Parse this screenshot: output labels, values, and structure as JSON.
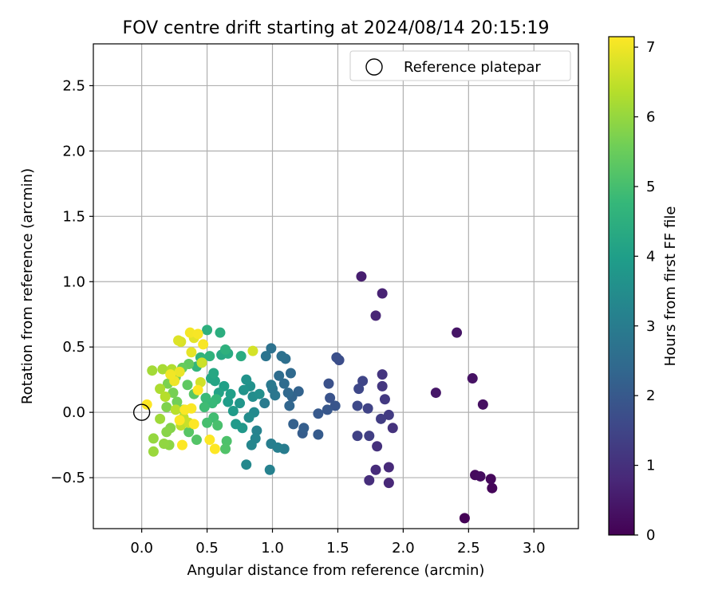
{
  "chart_data": {
    "type": "scatter",
    "title": "FOV centre drift starting at 2024/08/14 20:15:19",
    "xlabel": "Angular distance from reference (arcmin)",
    "ylabel": "Rotation from reference (arcmin)",
    "xlim": [
      -0.37,
      3.34
    ],
    "ylim": [
      -0.89,
      2.82
    ],
    "xticks": [
      0.0,
      0.5,
      1.0,
      1.5,
      2.0,
      2.5,
      3.0
    ],
    "xtick_labels": [
      "0.0",
      "0.5",
      "1.0",
      "1.5",
      "2.0",
      "2.5",
      "3.0"
    ],
    "yticks": [
      -0.5,
      0.0,
      0.5,
      1.0,
      1.5,
      2.0,
      2.5
    ],
    "ytick_labels": [
      "−0.5",
      "0.0",
      "0.5",
      "1.0",
      "1.5",
      "2.0",
      "2.5"
    ],
    "grid": true,
    "legend": {
      "position": "top-right",
      "entries": [
        "Reference platepar"
      ]
    },
    "reference_point": {
      "x": 0.0,
      "y": 0.0,
      "marker": "open-circle"
    },
    "colorbar": {
      "label": "Hours from first FF file",
      "min": 0,
      "max": 7.15,
      "ticks": [
        0,
        1,
        2,
        3,
        4,
        5,
        6,
        7
      ],
      "tick_labels": [
        "0",
        "1",
        "2",
        "3",
        "4",
        "5",
        "6",
        "7"
      ],
      "colormap": "viridis",
      "colors": [
        "#440154",
        "#482878",
        "#3e4989",
        "#31688e",
        "#26828e",
        "#1f9e89",
        "#35b779",
        "#6ece58",
        "#b5de2b",
        "#fde725"
      ]
    },
    "points": [
      {
        "x": 2.47,
        "y": -0.81,
        "c": 0.05
      },
      {
        "x": 2.68,
        "y": -0.58,
        "c": 0.1
      },
      {
        "x": 2.67,
        "y": -0.51,
        "c": 0.15
      },
      {
        "x": 2.55,
        "y": -0.48,
        "c": 0.2
      },
      {
        "x": 2.59,
        "y": -0.49,
        "c": 0.25
      },
      {
        "x": 2.61,
        "y": 0.06,
        "c": 0.3
      },
      {
        "x": 2.53,
        "y": 0.26,
        "c": 0.35
      },
      {
        "x": 2.41,
        "y": 0.61,
        "c": 0.4
      },
      {
        "x": 2.25,
        "y": 0.15,
        "c": 0.45
      },
      {
        "x": 1.68,
        "y": 1.04,
        "c": 0.6
      },
      {
        "x": 1.84,
        "y": 0.91,
        "c": 0.7
      },
      {
        "x": 1.79,
        "y": 0.74,
        "c": 0.75
      },
      {
        "x": 1.89,
        "y": -0.54,
        "c": 0.8
      },
      {
        "x": 1.89,
        "y": -0.42,
        "c": 0.85
      },
      {
        "x": 1.79,
        "y": -0.44,
        "c": 0.9
      },
      {
        "x": 1.74,
        "y": -0.52,
        "c": 0.95
      },
      {
        "x": 1.8,
        "y": -0.26,
        "c": 1.0
      },
      {
        "x": 1.92,
        "y": -0.12,
        "c": 1.05
      },
      {
        "x": 1.84,
        "y": 0.29,
        "c": 1.1
      },
      {
        "x": 1.84,
        "y": 0.2,
        "c": 1.15
      },
      {
        "x": 1.86,
        "y": 0.1,
        "c": 1.2
      },
      {
        "x": 1.89,
        "y": -0.02,
        "c": 1.25
      },
      {
        "x": 1.83,
        "y": -0.05,
        "c": 1.3
      },
      {
        "x": 1.74,
        "y": -0.18,
        "c": 1.35
      },
      {
        "x": 1.65,
        "y": -0.18,
        "c": 1.4
      },
      {
        "x": 1.73,
        "y": 0.03,
        "c": 1.45
      },
      {
        "x": 1.69,
        "y": 0.24,
        "c": 1.5
      },
      {
        "x": 1.66,
        "y": 0.18,
        "c": 1.55
      },
      {
        "x": 1.65,
        "y": 0.05,
        "c": 1.6
      },
      {
        "x": 1.51,
        "y": 0.4,
        "c": 1.7
      },
      {
        "x": 1.49,
        "y": 0.42,
        "c": 1.75
      },
      {
        "x": 1.43,
        "y": 0.22,
        "c": 1.8
      },
      {
        "x": 1.44,
        "y": 0.11,
        "c": 1.85
      },
      {
        "x": 1.48,
        "y": 0.05,
        "c": 1.9
      },
      {
        "x": 1.42,
        "y": 0.02,
        "c": 1.95
      },
      {
        "x": 1.35,
        "y": -0.01,
        "c": 2.0
      },
      {
        "x": 1.35,
        "y": -0.17,
        "c": 2.05
      },
      {
        "x": 1.23,
        "y": -0.16,
        "c": 2.1
      },
      {
        "x": 1.24,
        "y": -0.12,
        "c": 2.15
      },
      {
        "x": 1.16,
        "y": -0.09,
        "c": 2.2
      },
      {
        "x": 1.2,
        "y": 0.16,
        "c": 2.25
      },
      {
        "x": 1.15,
        "y": 0.12,
        "c": 2.3
      },
      {
        "x": 1.13,
        "y": 0.05,
        "c": 2.35
      },
      {
        "x": 1.12,
        "y": 0.15,
        "c": 2.4
      },
      {
        "x": 1.14,
        "y": 0.3,
        "c": 2.45
      },
      {
        "x": 1.09,
        "y": 0.22,
        "c": 2.5
      },
      {
        "x": 1.05,
        "y": 0.28,
        "c": 2.55
      },
      {
        "x": 1.1,
        "y": 0.41,
        "c": 2.6
      },
      {
        "x": 1.07,
        "y": 0.43,
        "c": 2.65
      },
      {
        "x": 0.99,
        "y": 0.49,
        "c": 2.7
      },
      {
        "x": 0.95,
        "y": 0.43,
        "c": 2.75
      },
      {
        "x": 1.0,
        "y": 0.18,
        "c": 2.8
      },
      {
        "x": 1.02,
        "y": 0.13,
        "c": 2.85
      },
      {
        "x": 0.99,
        "y": 0.21,
        "c": 2.9
      },
      {
        "x": 0.94,
        "y": 0.07,
        "c": 2.95
      },
      {
        "x": 1.09,
        "y": -0.28,
        "c": 3.0
      },
      {
        "x": 0.99,
        "y": -0.24,
        "c": 3.05
      },
      {
        "x": 1.04,
        "y": -0.27,
        "c": 3.1
      },
      {
        "x": 0.98,
        "y": -0.44,
        "c": 3.15
      },
      {
        "x": 0.88,
        "y": -0.14,
        "c": 3.2
      },
      {
        "x": 0.87,
        "y": -0.2,
        "c": 3.25
      },
      {
        "x": 0.84,
        "y": -0.25,
        "c": 3.3
      },
      {
        "x": 0.8,
        "y": -0.4,
        "c": 3.35
      },
      {
        "x": 0.86,
        "y": 0.0,
        "c": 3.4
      },
      {
        "x": 0.82,
        "y": -0.04,
        "c": 3.45
      },
      {
        "x": 0.85,
        "y": 0.12,
        "c": 3.5
      },
      {
        "x": 0.9,
        "y": 0.14,
        "c": 3.55
      },
      {
        "x": 0.83,
        "y": 0.2,
        "c": 3.6
      },
      {
        "x": 0.8,
        "y": 0.25,
        "c": 3.65
      },
      {
        "x": 0.78,
        "y": 0.17,
        "c": 3.7
      },
      {
        "x": 0.75,
        "y": 0.07,
        "c": 3.75
      },
      {
        "x": 0.77,
        "y": -0.12,
        "c": 3.8
      },
      {
        "x": 0.72,
        "y": -0.09,
        "c": 3.85
      },
      {
        "x": 0.7,
        "y": 0.01,
        "c": 3.9
      },
      {
        "x": 0.66,
        "y": 0.08,
        "c": 3.95
      },
      {
        "x": 0.68,
        "y": 0.14,
        "c": 4.0
      },
      {
        "x": 0.63,
        "y": 0.2,
        "c": 4.05
      },
      {
        "x": 0.59,
        "y": 0.15,
        "c": 4.1
      },
      {
        "x": 0.56,
        "y": 0.24,
        "c": 4.15
      },
      {
        "x": 0.53,
        "y": 0.26,
        "c": 4.2
      },
      {
        "x": 0.55,
        "y": 0.3,
        "c": 4.25
      },
      {
        "x": 0.61,
        "y": 0.44,
        "c": 4.3
      },
      {
        "x": 0.66,
        "y": 0.45,
        "c": 4.35
      },
      {
        "x": 0.76,
        "y": 0.43,
        "c": 4.4
      },
      {
        "x": 0.6,
        "y": 0.61,
        "c": 4.45
      },
      {
        "x": 0.5,
        "y": 0.63,
        "c": 4.5
      },
      {
        "x": 0.64,
        "y": 0.48,
        "c": 4.55
      },
      {
        "x": 0.52,
        "y": 0.43,
        "c": 4.6
      },
      {
        "x": 0.45,
        "y": 0.42,
        "c": 4.65
      },
      {
        "x": 0.42,
        "y": 0.35,
        "c": 4.7
      },
      {
        "x": 0.57,
        "y": 0.1,
        "c": 4.75
      },
      {
        "x": 0.54,
        "y": 0.07,
        "c": 4.8
      },
      {
        "x": 0.49,
        "y": 0.11,
        "c": 4.85
      },
      {
        "x": 0.48,
        "y": 0.04,
        "c": 4.9
      },
      {
        "x": 0.55,
        "y": -0.04,
        "c": 4.95
      },
      {
        "x": 0.5,
        "y": -0.08,
        "c": 5.0
      },
      {
        "x": 0.58,
        "y": -0.1,
        "c": 5.05
      },
      {
        "x": 0.65,
        "y": -0.22,
        "c": 5.1
      },
      {
        "x": 0.64,
        "y": -0.28,
        "c": 5.15
      },
      {
        "x": 0.42,
        "y": -0.21,
        "c": 5.2
      },
      {
        "x": 0.36,
        "y": -0.15,
        "c": 5.25
      },
      {
        "x": 0.4,
        "y": 0.14,
        "c": 5.3
      },
      {
        "x": 0.35,
        "y": 0.21,
        "c": 5.35
      },
      {
        "x": 0.36,
        "y": 0.37,
        "c": 5.4
      },
      {
        "x": 0.31,
        "y": 0.34,
        "c": 5.45
      },
      {
        "x": 0.26,
        "y": 0.27,
        "c": 5.5
      },
      {
        "x": 0.32,
        "y": 0.02,
        "c": 5.55
      },
      {
        "x": 0.27,
        "y": 0.08,
        "c": 5.6
      },
      {
        "x": 0.24,
        "y": 0.15,
        "c": 5.65
      },
      {
        "x": 0.2,
        "y": 0.22,
        "c": 5.7
      },
      {
        "x": 0.19,
        "y": 0.04,
        "c": 5.75
      },
      {
        "x": 0.22,
        "y": -0.12,
        "c": 5.8
      },
      {
        "x": 0.19,
        "y": -0.15,
        "c": 5.85
      },
      {
        "x": 0.21,
        "y": -0.25,
        "c": 5.9
      },
      {
        "x": 0.17,
        "y": -0.24,
        "c": 5.95
      },
      {
        "x": 0.09,
        "y": -0.2,
        "c": 6.0
      },
      {
        "x": 0.09,
        "y": -0.3,
        "c": 6.05
      },
      {
        "x": 0.14,
        "y": -0.05,
        "c": 6.1
      },
      {
        "x": 0.08,
        "y": 0.32,
        "c": 6.15
      },
      {
        "x": 0.16,
        "y": 0.33,
        "c": 6.2
      },
      {
        "x": 0.14,
        "y": 0.18,
        "c": 6.25
      },
      {
        "x": 0.23,
        "y": 0.33,
        "c": 6.3
      },
      {
        "x": 0.18,
        "y": 0.12,
        "c": 6.35
      },
      {
        "x": 0.26,
        "y": 0.02,
        "c": 6.4
      },
      {
        "x": 0.3,
        "y": -0.1,
        "c": 6.45
      },
      {
        "x": 0.32,
        "y": -0.04,
        "c": 6.5
      },
      {
        "x": 0.36,
        "y": -0.08,
        "c": 6.55
      },
      {
        "x": 0.46,
        "y": 0.38,
        "c": 6.6
      },
      {
        "x": 0.45,
        "y": 0.23,
        "c": 6.65
      },
      {
        "x": 0.85,
        "y": 0.47,
        "c": 6.7
      },
      {
        "x": 0.3,
        "y": 0.54,
        "c": 6.75
      },
      {
        "x": 0.28,
        "y": 0.55,
        "c": 6.8
      },
      {
        "x": 0.4,
        "y": 0.57,
        "c": 6.85
      },
      {
        "x": 0.38,
        "y": 0.46,
        "c": 6.9
      },
      {
        "x": 0.29,
        "y": 0.31,
        "c": 6.95
      },
      {
        "x": 0.25,
        "y": 0.24,
        "c": 7.0
      },
      {
        "x": 0.22,
        "y": 0.29,
        "c": 7.02
      },
      {
        "x": 0.37,
        "y": 0.61,
        "c": 7.05
      },
      {
        "x": 0.43,
        "y": 0.6,
        "c": 7.08
      },
      {
        "x": 0.47,
        "y": 0.52,
        "c": 7.1
      },
      {
        "x": 0.38,
        "y": 0.03,
        "c": 7.12
      },
      {
        "x": 0.33,
        "y": 0.02,
        "c": 7.12
      },
      {
        "x": 0.29,
        "y": -0.06,
        "c": 7.13
      },
      {
        "x": 0.31,
        "y": -0.25,
        "c": 7.14
      },
      {
        "x": 0.52,
        "y": -0.21,
        "c": 7.14
      },
      {
        "x": 0.56,
        "y": -0.28,
        "c": 7.15
      },
      {
        "x": 0.04,
        "y": 0.06,
        "c": 7.15
      },
      {
        "x": 0.4,
        "y": -0.09,
        "c": 7.15
      },
      {
        "x": 0.43,
        "y": 0.17,
        "c": 7.15
      }
    ]
  }
}
